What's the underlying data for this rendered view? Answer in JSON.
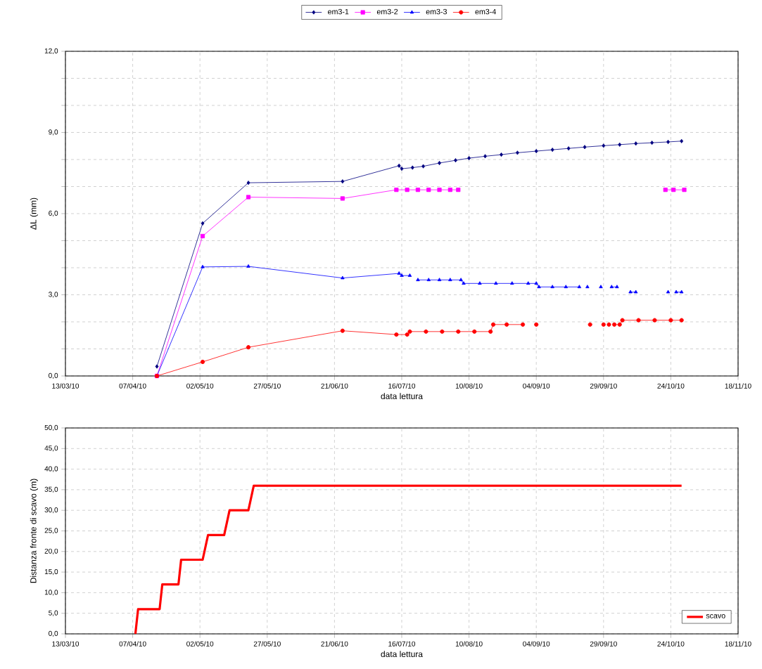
{
  "chart_data": [
    {
      "type": "line",
      "xlabel": "data lettura",
      "ylabel": "ΔL (mm)",
      "legend": "top",
      "grid": true,
      "xlim": [
        "2010-03-13",
        "2010-11-18"
      ],
      "xticks": [
        {
          "value": "2010-03-13",
          "label": "13/03/10"
        },
        {
          "value": "2010-04-07",
          "label": "07/04/10"
        },
        {
          "value": "2010-05-02",
          "label": "02/05/10"
        },
        {
          "value": "2010-05-27",
          "label": "27/05/10"
        },
        {
          "value": "2010-06-21",
          "label": "21/06/10"
        },
        {
          "value": "2010-07-16",
          "label": "16/07/10"
        },
        {
          "value": "2010-08-10",
          "label": "10/08/10"
        },
        {
          "value": "2010-09-04",
          "label": "04/09/10"
        },
        {
          "value": "2010-09-29",
          "label": "29/09/10"
        },
        {
          "value": "2010-10-24",
          "label": "24/10/10"
        },
        {
          "value": "2010-11-18",
          "label": "18/11/10"
        }
      ],
      "ylim": [
        0,
        12
      ],
      "yticks": [
        {
          "value": 0,
          "label": "0,0"
        },
        {
          "value": 1,
          "label": null
        },
        {
          "value": 2,
          "label": null
        },
        {
          "value": 3,
          "label": "3,0"
        },
        {
          "value": 4,
          "label": null
        },
        {
          "value": 5,
          "label": null
        },
        {
          "value": 6,
          "label": "6,0"
        },
        {
          "value": 7,
          "label": null
        },
        {
          "value": 8,
          "label": null
        },
        {
          "value": 9,
          "label": "9,0"
        },
        {
          "value": 10,
          "label": null
        },
        {
          "value": 11,
          "label": null
        },
        {
          "value": 12,
          "label": "12,0"
        }
      ],
      "series": [
        {
          "name": "em3-1",
          "color": "#000080",
          "marker": "diamond",
          "x": [
            "2010-04-16",
            "2010-05-03",
            "2010-05-20",
            "2010-06-24",
            "2010-07-15",
            "2010-07-16",
            "2010-07-20",
            "2010-07-24",
            "2010-07-30",
            "2010-08-05",
            "2010-08-10",
            "2010-08-16",
            "2010-08-22",
            "2010-08-28",
            "2010-09-04",
            "2010-09-10",
            "2010-09-16",
            "2010-09-22",
            "2010-09-29",
            "2010-10-05",
            "2010-10-11",
            "2010-10-17",
            "2010-10-23",
            "2010-10-28"
          ],
          "values": [
            0.35,
            5.64,
            7.14,
            7.19,
            7.77,
            7.66,
            7.7,
            7.75,
            7.87,
            7.97,
            8.05,
            8.12,
            8.18,
            8.25,
            8.31,
            8.36,
            8.41,
            8.46,
            8.51,
            8.55,
            8.59,
            8.62,
            8.65,
            8.68
          ]
        },
        {
          "name": "em3-2",
          "color": "#ff00ff",
          "marker": "square",
          "x": [
            "2010-04-16",
            "2010-05-03",
            "2010-05-20",
            "2010-06-24",
            "2010-07-14",
            "2010-07-18",
            "2010-07-22",
            "2010-07-26",
            "2010-07-30",
            "2010-08-03",
            "2010-08-06",
            "2010-09-15",
            "2010-10-22",
            "2010-10-25",
            "2010-10-29"
          ],
          "values": [
            0.0,
            5.17,
            6.61,
            6.56,
            6.88,
            6.88,
            6.88,
            6.88,
            6.88,
            6.88,
            6.88,
            null,
            6.88,
            6.88,
            6.88
          ]
        },
        {
          "name": "em3-3",
          "color": "#0000ff",
          "marker": "triangle",
          "x": [
            "2010-04-16",
            "2010-05-03",
            "2010-05-20",
            "2010-06-24",
            "2010-07-15",
            "2010-07-16",
            "2010-07-19",
            "2010-07-20",
            "2010-07-22",
            "2010-07-26",
            "2010-07-30",
            "2010-08-03",
            "2010-08-07",
            "2010-08-08",
            "2010-08-14",
            "2010-08-20",
            "2010-08-26",
            "2010-09-01",
            "2010-09-04",
            "2010-09-05",
            "2010-09-10",
            "2010-09-15",
            "2010-09-20",
            "2010-09-21",
            "2010-09-23",
            "2010-09-25",
            "2010-09-28",
            "2010-09-30",
            "2010-10-02",
            "2010-10-04",
            "2010-10-06",
            "2010-10-09",
            "2010-10-11",
            "2010-10-17",
            "2010-10-23",
            "2010-10-24",
            "2010-10-26",
            "2010-10-28"
          ],
          "values": [
            0.0,
            4.03,
            4.05,
            3.62,
            3.79,
            3.71,
            3.71,
            null,
            3.55,
            3.55,
            3.55,
            3.55,
            3.55,
            3.42,
            3.42,
            3.42,
            3.42,
            3.42,
            3.42,
            3.29,
            3.29,
            3.29,
            3.29,
            null,
            3.29,
            null,
            3.29,
            null,
            3.29,
            3.29,
            null,
            3.1,
            3.1,
            null,
            3.1,
            null,
            3.1,
            3.1
          ]
        },
        {
          "name": "em3-4",
          "color": "#ff0000",
          "marker": "circle",
          "x": [
            "2010-04-16",
            "2010-05-03",
            "2010-05-20",
            "2010-06-24",
            "2010-07-14",
            "2010-07-18",
            "2010-07-19",
            "2010-07-25",
            "2010-07-31",
            "2010-08-06",
            "2010-08-12",
            "2010-08-18",
            "2010-08-19",
            "2010-08-24",
            "2010-08-30",
            "2010-09-01",
            "2010-09-04",
            "2010-09-14",
            "2010-09-24",
            "2010-09-26",
            "2010-09-29",
            "2010-09-30",
            "2010-10-01",
            "2010-10-02",
            "2010-10-03",
            "2010-10-05",
            "2010-10-06",
            "2010-10-12",
            "2010-10-18",
            "2010-10-24",
            "2010-10-28"
          ],
          "values": [
            0.0,
            0.52,
            1.06,
            1.67,
            1.53,
            1.53,
            1.64,
            1.64,
            1.64,
            1.64,
            1.64,
            1.64,
            1.9,
            1.9,
            1.9,
            null,
            1.9,
            null,
            1.9,
            null,
            1.9,
            null,
            1.9,
            null,
            1.9,
            1.9,
            2.06,
            2.06,
            2.06,
            2.06,
            2.06
          ]
        }
      ]
    },
    {
      "type": "line",
      "xlabel": "data lettura",
      "ylabel": "Distanza fronte di scavo (m)",
      "legend": "bottom right",
      "grid": true,
      "marker": "none",
      "xlim": [
        "2010-03-13",
        "2010-11-18"
      ],
      "xticks": [
        {
          "value": "2010-03-13",
          "label": "13/03/10"
        },
        {
          "value": "2010-04-07",
          "label": "07/04/10"
        },
        {
          "value": "2010-05-02",
          "label": "02/05/10"
        },
        {
          "value": "2010-05-27",
          "label": "27/05/10"
        },
        {
          "value": "2010-06-21",
          "label": "21/06/10"
        },
        {
          "value": "2010-07-16",
          "label": "16/07/10"
        },
        {
          "value": "2010-08-10",
          "label": "10/08/10"
        },
        {
          "value": "2010-09-04",
          "label": "04/09/10"
        },
        {
          "value": "2010-09-29",
          "label": "29/09/10"
        },
        {
          "value": "2010-10-24",
          "label": "24/10/10"
        },
        {
          "value": "2010-11-18",
          "label": "18/11/10"
        }
      ],
      "ylim": [
        0,
        50
      ],
      "yticks": [
        {
          "value": 0,
          "label": "0,0"
        },
        {
          "value": 5,
          "label": "5,0"
        },
        {
          "value": 10,
          "label": "10,0"
        },
        {
          "value": 15,
          "label": "15,0"
        },
        {
          "value": 20,
          "label": "20,0"
        },
        {
          "value": 25,
          "label": "25,0"
        },
        {
          "value": 30,
          "label": "30,0"
        },
        {
          "value": 35,
          "label": "35,0"
        },
        {
          "value": 40,
          "label": "40,0"
        },
        {
          "value": 45,
          "label": "45,0"
        },
        {
          "value": 50,
          "label": "50,0"
        }
      ],
      "series": [
        {
          "name": "scavo",
          "color": "#ff0000",
          "x": [
            "2010-04-08",
            "2010-04-09",
            "2010-04-17",
            "2010-04-18",
            "2010-04-24",
            "2010-04-25",
            "2010-05-03",
            "2010-05-05",
            "2010-05-11",
            "2010-05-13",
            "2010-05-20",
            "2010-05-22",
            "2010-10-28"
          ],
          "values": [
            0,
            6,
            6,
            12,
            12,
            18,
            18,
            24,
            24,
            30,
            30,
            36,
            36
          ]
        }
      ]
    }
  ]
}
